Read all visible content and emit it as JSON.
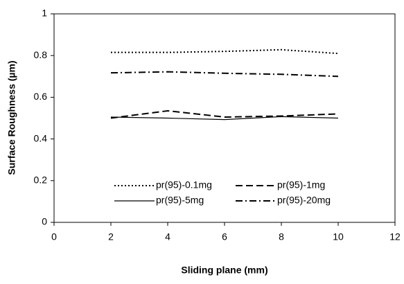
{
  "chart_data": {
    "type": "line",
    "xlabel": "Sliding plane (mm)",
    "ylabel": "Surface Roughness (µm)",
    "x": [
      2,
      4,
      6,
      8,
      10
    ],
    "series": [
      {
        "name": "pr(95)-0.1mg",
        "color": "#000000",
        "dash": "dotted",
        "values": [
          0.815,
          0.815,
          0.82,
          0.828,
          0.81
        ]
      },
      {
        "name": "pr(95)-1mg",
        "color": "#000000",
        "dash": "dashed",
        "values": [
          0.5,
          0.535,
          0.505,
          0.51,
          0.52
        ]
      },
      {
        "name": "pr(95)-5mg",
        "color": "#000000",
        "dash": "solid",
        "values": [
          0.505,
          0.5,
          0.493,
          0.507,
          0.5
        ]
      },
      {
        "name": "pr(95)-20mg",
        "color": "#000000",
        "dash": "dashdot",
        "values": [
          0.717,
          0.722,
          0.715,
          0.71,
          0.7
        ]
      }
    ],
    "xlim": [
      0,
      12
    ],
    "xticks": [
      0,
      2,
      4,
      6,
      8,
      10,
      12
    ],
    "ylim": [
      0,
      1
    ],
    "yticks": [
      0,
      0.2,
      0.4,
      0.6,
      0.8,
      1
    ],
    "grid": false,
    "legend": "bottom"
  }
}
